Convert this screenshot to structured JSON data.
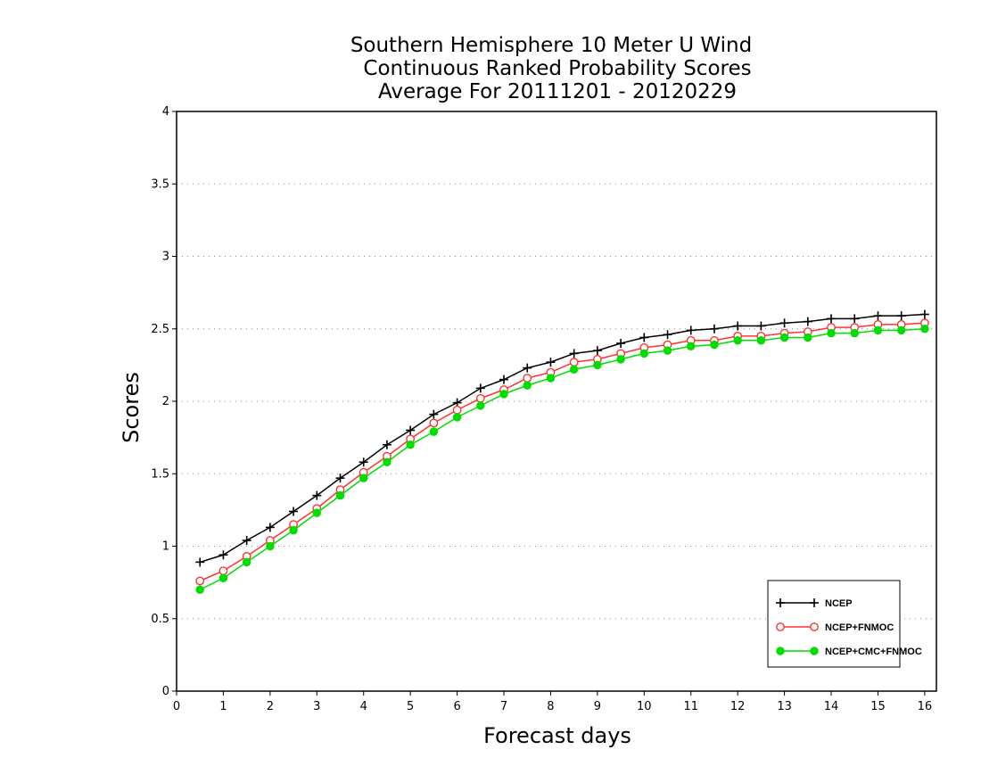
{
  "chart_data": {
    "type": "line",
    "title": [
      "Southern Hemisphere 10 Meter U Wind",
      "Continuous Ranked Probability Scores",
      "Average For 20111201 - 20120229"
    ],
    "xlabel": "Forecast days",
    "ylabel": "Scores",
    "xlim": [
      0,
      16.25
    ],
    "ylim": [
      0,
      4
    ],
    "xticks": [
      "0",
      "1",
      "2",
      "3",
      "4",
      "5",
      "6",
      "7",
      "8",
      "9",
      "10",
      "11",
      "12",
      "13",
      "14",
      "15",
      "16"
    ],
    "yticks": [
      "0",
      "0.5",
      "1",
      "1.5",
      "2",
      "2.5",
      "3",
      "3.5",
      "4"
    ],
    "grid": "horizontal-dotted",
    "legend_position": "bottom-right",
    "x": [
      0.5,
      1,
      1.5,
      2,
      2.5,
      3,
      3.5,
      4,
      4.5,
      5,
      5.5,
      6,
      6.5,
      7,
      7.5,
      8,
      8.5,
      9,
      9.5,
      10,
      10.5,
      11,
      11.5,
      12,
      12.5,
      13,
      13.5,
      14,
      14.5,
      15,
      15.5,
      16
    ],
    "series": [
      {
        "name": "NCEP",
        "color": "#000000",
        "marker": "plus",
        "values": [
          0.89,
          0.94,
          1.04,
          1.13,
          1.24,
          1.35,
          1.47,
          1.58,
          1.7,
          1.8,
          1.91,
          1.99,
          2.09,
          2.15,
          2.23,
          2.27,
          2.33,
          2.35,
          2.4,
          2.44,
          2.46,
          2.49,
          2.5,
          2.52,
          2.52,
          2.54,
          2.55,
          2.57,
          2.57,
          2.59,
          2.59,
          2.6
        ]
      },
      {
        "name": "NCEP+FNMOC",
        "color": "#ff3333",
        "marker": "open-circle",
        "values": [
          0.76,
          0.83,
          0.93,
          1.04,
          1.15,
          1.26,
          1.39,
          1.51,
          1.62,
          1.74,
          1.85,
          1.94,
          2.02,
          2.08,
          2.16,
          2.2,
          2.27,
          2.29,
          2.33,
          2.37,
          2.39,
          2.42,
          2.42,
          2.45,
          2.45,
          2.47,
          2.48,
          2.51,
          2.51,
          2.53,
          2.53,
          2.54
        ]
      },
      {
        "name": "NCEP+CMC+FNMOC",
        "color": "#00dd00",
        "marker": "filled-circle",
        "values": [
          0.7,
          0.78,
          0.89,
          1.0,
          1.11,
          1.23,
          1.35,
          1.47,
          1.58,
          1.7,
          1.79,
          1.89,
          1.97,
          2.05,
          2.11,
          2.16,
          2.22,
          2.25,
          2.29,
          2.33,
          2.35,
          2.38,
          2.39,
          2.42,
          2.42,
          2.44,
          2.44,
          2.47,
          2.47,
          2.49,
          2.49,
          2.5
        ]
      }
    ]
  }
}
